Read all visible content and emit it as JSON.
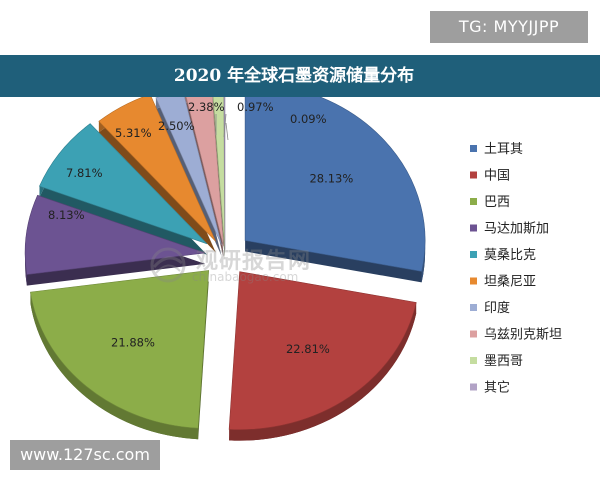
{
  "tg_badge": "TG: MYYJJPP",
  "site_badge": "www.127sc.com",
  "watermark": {
    "cn": "观研报告网",
    "en": "chinabaogao.com"
  },
  "chart_data": {
    "type": "pie",
    "title": "2020 年全球石墨资源储量分布",
    "exploded": true,
    "style": "3d",
    "legend_position": "right",
    "labels": [
      "土耳其",
      "中国",
      "巴西",
      "马达加斯加",
      "莫桑比克",
      "坦桑尼亚",
      "印度",
      "乌兹别克斯坦",
      "墨西哥",
      "其它"
    ],
    "values": [
      28.13,
      22.81,
      21.88,
      8.13,
      7.81,
      5.31,
      2.5,
      2.38,
      0.97,
      0.09
    ],
    "value_labels": [
      "28.13%",
      "22.81%",
      "21.88%",
      "8.13%",
      "7.81%",
      "5.31%",
      "2.50%",
      "2.38%",
      "0.97%",
      "0.09%"
    ],
    "colors": [
      "#4a73ae",
      "#b3413f",
      "#8cad49",
      "#6c5392",
      "#3ca1b4",
      "#e7892f",
      "#9dadd4",
      "#dca0a0",
      "#c5dda0",
      "#b2a3c6"
    ]
  }
}
